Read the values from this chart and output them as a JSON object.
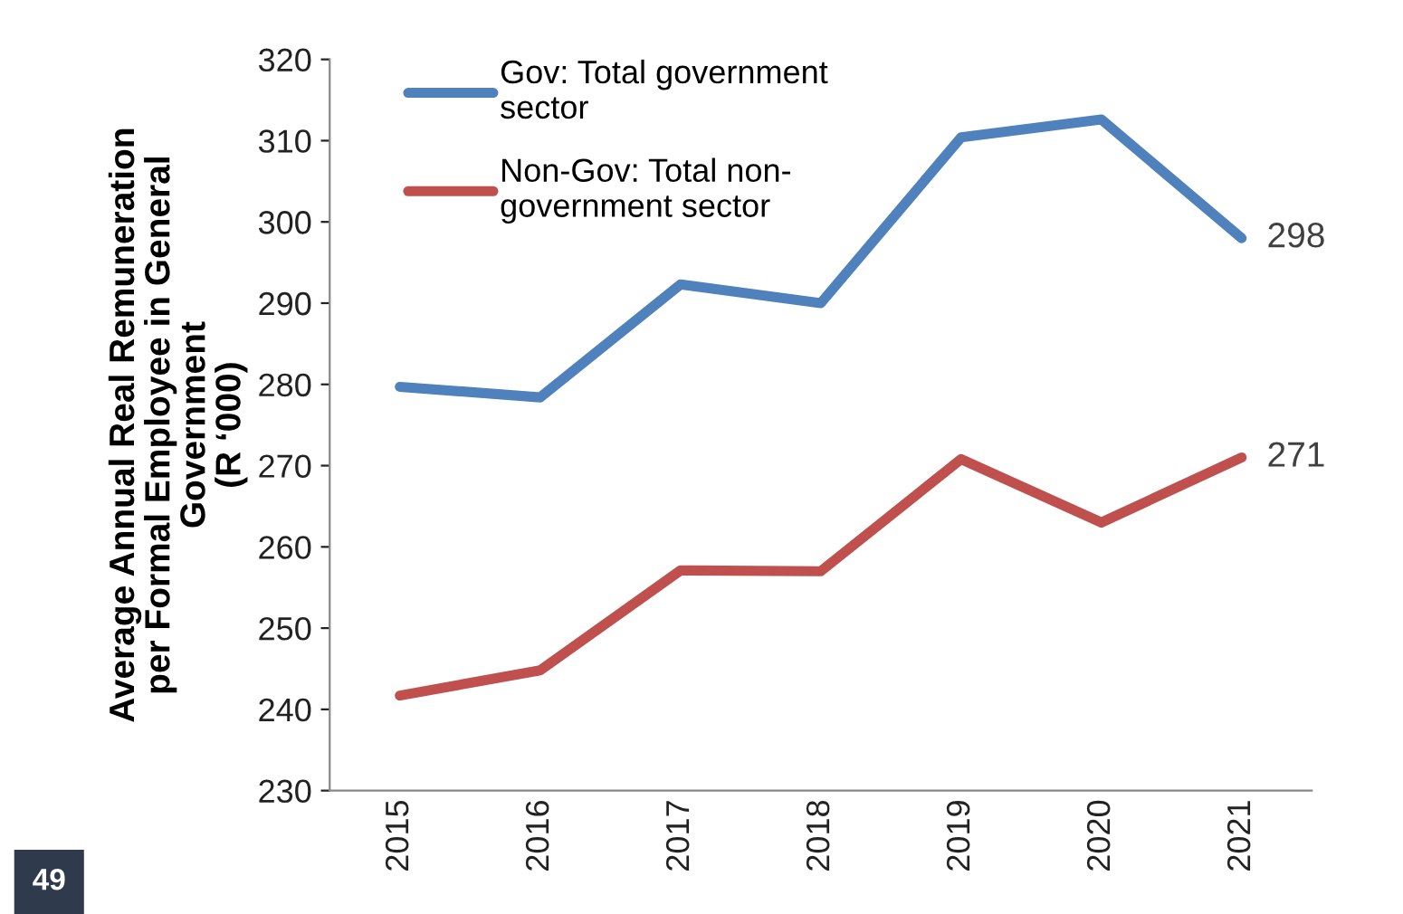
{
  "chart_data": {
    "type": "line",
    "ylabel": "Average Annual Real Remuneration\nper Formal Employee in General\nGovernment\n(R ‘000)",
    "categories": [
      "2015",
      "2016",
      "2017",
      "2018",
      "2019",
      "2020",
      "2021"
    ],
    "series": [
      {
        "name": "Gov: Total government\nsector",
        "color": "#4f81bd",
        "values": [
          279.7,
          278.4,
          292.3,
          290,
          310.4,
          312.6,
          298
        ],
        "value_labels": [
          null,
          null,
          null,
          null,
          null,
          null,
          "298"
        ]
      },
      {
        "name": "Non-Gov: Total non-\ngovernment sector",
        "color": "#c0504d",
        "values": [
          241.7,
          244.8,
          257.1,
          257,
          270.8,
          263,
          271
        ],
        "value_labels": [
          null,
          null,
          null,
          null,
          null,
          null,
          "271"
        ]
      }
    ],
    "ylim": [
      230,
      320
    ],
    "yticks": [
      230,
      240,
      250,
      260,
      270,
      280,
      290,
      300,
      310,
      320
    ],
    "grid": false,
    "legend": "top left",
    "marker": "none",
    "line_style": "solid",
    "annotations": [
      "49"
    ]
  }
}
